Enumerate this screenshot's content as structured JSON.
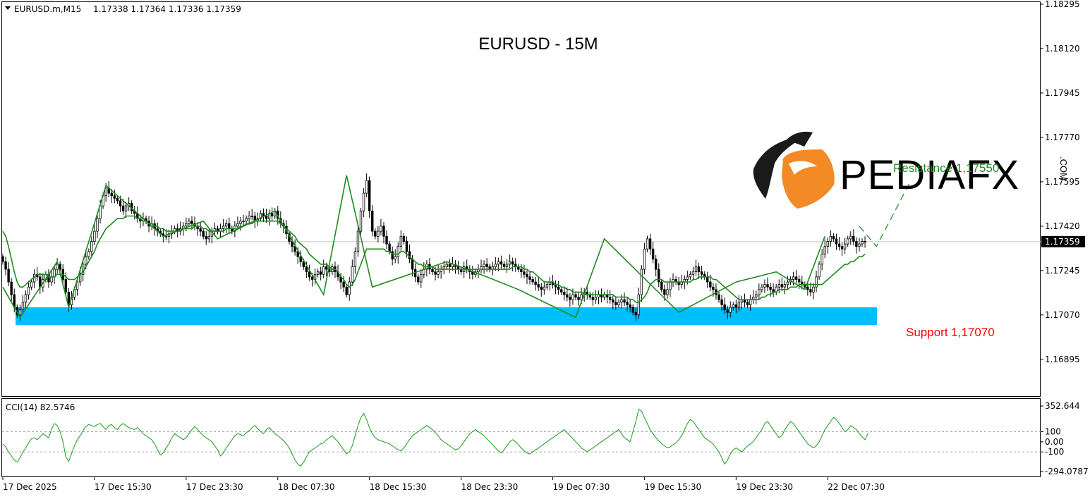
{
  "header": {
    "symbol_info": "EURUSD.m,M15",
    "ohlc": "1.17338 1.17364 1.17336 1.17359",
    "title": "EURUSD - 15M"
  },
  "annotations": {
    "resistance_label": "Resistance 1,17550",
    "support_label": "Support 1,17070"
  },
  "watermark": {
    "brand": "PEDIAFX",
    "suffix": ".COM"
  },
  "indicator": {
    "label": "CCI(14) 82.5746"
  },
  "colors": {
    "candle": "#000000",
    "zigzag": "#1e8a1e",
    "ma": "#1e8a1e",
    "cci_line": "#1a9a1a",
    "support_zone": "#00bfff",
    "support_text": "#ff0000",
    "resistance_text": "#1e8a1e",
    "price_tag_bg": "#000000",
    "logo_orange": "#f28a26"
  },
  "chart_data": [
    {
      "type": "candlestick",
      "title": "EURUSD - 15M",
      "ylim": [
        1.168,
        1.18295
      ],
      "y_ticks": [
        "1.18295",
        "1.18120",
        "1.17945",
        "1.17770",
        "1.17595",
        "1.17420",
        "1.17245",
        "1.17070",
        "1.16895"
      ],
      "last_price": "1.17359",
      "x_tick_labels": [
        "17 Dec 2025",
        "17 Dec 15:30",
        "17 Dec 23:30",
        "18 Dec 07:30",
        "18 Dec 15:30",
        "18 Dec 23:30",
        "19 Dec 07:30",
        "19 Dec 15:30",
        "19 Dec 23:30",
        "22 Dec 07:30"
      ],
      "x_tick_bars": [
        0,
        32,
        64,
        96,
        128,
        160,
        192,
        224,
        256,
        288
      ],
      "closes": [
        1.1728,
        1.1725,
        1.172,
        1.1715,
        1.171,
        1.1707,
        1.1709,
        1.1712,
        1.1715,
        1.1718,
        1.172,
        1.1723,
        1.1722,
        1.1718,
        1.1721,
        1.1723,
        1.172,
        1.1722,
        1.1725,
        1.1727,
        1.1725,
        1.1721,
        1.1716,
        1.1711,
        1.1714,
        1.1717,
        1.172,
        1.1723,
        1.1727,
        1.173,
        1.1732,
        1.1736,
        1.174,
        1.1745,
        1.175,
        1.1754,
        1.1757,
        1.1755,
        1.1754,
        1.1753,
        1.1752,
        1.175,
        1.1748,
        1.175,
        1.1751,
        1.1748,
        1.1747,
        1.1745,
        1.1744,
        1.1745,
        1.1744,
        1.1742,
        1.1743,
        1.1741,
        1.174,
        1.1739,
        1.1738,
        1.1738,
        1.1739,
        1.174,
        1.1741,
        1.174,
        1.1741,
        1.1742,
        1.1743,
        1.1744,
        1.1743,
        1.1742,
        1.1741,
        1.174,
        1.1738,
        1.1737,
        1.1738,
        1.174,
        1.1741,
        1.174,
        1.1741,
        1.1742,
        1.1743,
        1.1741,
        1.174,
        1.1742,
        1.1743,
        1.1744,
        1.1744,
        1.1745,
        1.1746,
        1.1746,
        1.1744,
        1.1745,
        1.1747,
        1.1746,
        1.1745,
        1.1747,
        1.1746,
        1.1748,
        1.1745,
        1.1743,
        1.1742,
        1.1739,
        1.1736,
        1.1734,
        1.1732,
        1.173,
        1.1728,
        1.1726,
        1.1724,
        1.1722,
        1.1721,
        1.1723,
        1.1724,
        1.1723,
        1.1726,
        1.1725,
        1.1724,
        1.1726,
        1.1724,
        1.1722,
        1.172,
        1.1718,
        1.1715,
        1.172,
        1.1726,
        1.1732,
        1.174,
        1.1748,
        1.1755,
        1.176,
        1.1748,
        1.174,
        1.1738,
        1.174,
        1.1742,
        1.1738,
        1.1735,
        1.1732,
        1.1729,
        1.173,
        1.1734,
        1.1738,
        1.1736,
        1.1732,
        1.1729,
        1.1725,
        1.1722,
        1.172,
        1.1723,
        1.1725,
        1.1727,
        1.1725,
        1.1724,
        1.1723,
        1.1724,
        1.1725,
        1.1726,
        1.1727,
        1.1726,
        1.1727,
        1.1726,
        1.1725,
        1.1724,
        1.1726,
        1.1725,
        1.1724,
        1.1723,
        1.1724,
        1.1725,
        1.1726,
        1.1727,
        1.1726,
        1.1725,
        1.1726,
        1.1727,
        1.1728,
        1.1727,
        1.1726,
        1.1727,
        1.1728,
        1.1727,
        1.1726,
        1.1725,
        1.1724,
        1.1723,
        1.1722,
        1.1721,
        1.172,
        1.1719,
        1.1718,
        1.1717,
        1.1718,
        1.1719,
        1.172,
        1.1719,
        1.1718,
        1.1717,
        1.1716,
        1.1715,
        1.1714,
        1.1713,
        1.1715,
        1.1714,
        1.1713,
        1.1715,
        1.1716,
        1.1715,
        1.1714,
        1.1713,
        1.1714,
        1.1715,
        1.1714,
        1.1715,
        1.1714,
        1.1713,
        1.1712,
        1.1711,
        1.1712,
        1.1713,
        1.1712,
        1.1711,
        1.171,
        1.1708,
        1.1707,
        1.1715,
        1.1725,
        1.1733,
        1.1737,
        1.1733,
        1.1729,
        1.1725,
        1.172,
        1.1717,
        1.1715,
        1.1717,
        1.172,
        1.1721,
        1.172,
        1.1719,
        1.172,
        1.1721,
        1.1722,
        1.1723,
        1.1724,
        1.1726,
        1.1724,
        1.1723,
        1.1722,
        1.172,
        1.1718,
        1.1717,
        1.1715,
        1.1713,
        1.1711,
        1.1709,
        1.1708,
        1.171,
        1.1711,
        1.171,
        1.1712,
        1.1713,
        1.1712,
        1.1711,
        1.1713,
        1.1714,
        1.1715,
        1.1717,
        1.1718,
        1.1719,
        1.1718,
        1.1717,
        1.1716,
        1.1718,
        1.1719,
        1.1718,
        1.1719,
        1.172,
        1.1721,
        1.1722,
        1.1721,
        1.172,
        1.1719,
        1.1718,
        1.1717,
        1.1716,
        1.1718,
        1.1722,
        1.1727,
        1.1731,
        1.1734,
        1.1736,
        1.1738,
        1.1737,
        1.1735,
        1.1734,
        1.1733,
        1.1735,
        1.1737,
        1.1738,
        1.1736,
        1.1734,
        1.1735,
        1.1736,
        1.17359
      ],
      "moving_average": [
        1.174,
        1.1738,
        1.1734,
        1.1729,
        1.1724,
        1.172,
        1.1718,
        1.1718,
        1.1719,
        1.172,
        1.1721,
        1.1722,
        1.1723,
        1.1723,
        1.1723,
        1.1723,
        1.1722,
        1.1722,
        1.1722,
        1.1723,
        1.1723,
        1.1723,
        1.1722,
        1.1721,
        1.1721,
        1.1721,
        1.1722,
        1.1723,
        1.1724,
        1.1726,
        1.1728,
        1.173,
        1.1732,
        1.1735,
        1.1737,
        1.1739,
        1.1741,
        1.1742,
        1.1743,
        1.1744,
        1.1745,
        1.1745,
        1.1745,
        1.1746,
        1.1746,
        1.1746,
        1.1746,
        1.1745,
        1.1745,
        1.1744,
        1.1744,
        1.1743,
        1.1743,
        1.1742,
        1.1742,
        1.1741,
        1.1741,
        1.174,
        1.174,
        1.174,
        1.174,
        1.174,
        1.174,
        1.1741,
        1.1741,
        1.1741,
        1.1741,
        1.1742,
        1.1742,
        1.1742,
        1.1741,
        1.1741,
        1.174,
        1.174,
        1.174,
        1.174,
        1.174,
        1.174,
        1.1741,
        1.1741,
        1.1741,
        1.1741,
        1.1741,
        1.1742,
        1.1742,
        1.1743,
        1.1743,
        1.1743,
        1.1744,
        1.1744,
        1.1744,
        1.1744,
        1.1744,
        1.1744,
        1.1744,
        1.1744,
        1.1744,
        1.1743,
        1.1742,
        1.1741,
        1.174,
        1.1739,
        1.1738,
        1.1736,
        1.1735,
        1.1734,
        1.1733,
        1.1731,
        1.173,
        1.1729,
        1.1728,
        1.1727,
        1.1727,
        1.1727,
        1.1726,
        1.1725,
        1.1725,
        1.1724,
        1.1722,
        1.1721,
        1.1719,
        1.1718,
        1.1719,
        1.1721,
        1.1724,
        1.1727,
        1.173,
        1.1733,
        1.1733,
        1.1733,
        1.1733,
        1.1733,
        1.1733,
        1.1733,
        1.1732,
        1.1732,
        1.1731,
        1.1731,
        1.1731,
        1.1732,
        1.1732,
        1.1731,
        1.173,
        1.1729,
        1.1728,
        1.1727,
        1.1727,
        1.1726,
        1.1726,
        1.1726,
        1.1726,
        1.1725,
        1.1725,
        1.1725,
        1.1725,
        1.1725,
        1.1725,
        1.1725,
        1.1725,
        1.1725,
        1.1725,
        1.1725,
        1.1725,
        1.1725,
        1.1725,
        1.1725,
        1.1725,
        1.1725,
        1.1725,
        1.1725,
        1.1725,
        1.1725,
        1.1725,
        1.1725,
        1.1725,
        1.1725,
        1.1725,
        1.1725,
        1.1726,
        1.1726,
        1.1726,
        1.1726,
        1.1725,
        1.1725,
        1.1724,
        1.1724,
        1.1723,
        1.1722,
        1.1721,
        1.172,
        1.172,
        1.172,
        1.172,
        1.1719,
        1.1719,
        1.1718,
        1.1718,
        1.1717,
        1.1717,
        1.1716,
        1.1716,
        1.1716,
        1.1716,
        1.1715,
        1.1715,
        1.1715,
        1.1715,
        1.1715,
        1.1715,
        1.1715,
        1.1715,
        1.1715,
        1.1715,
        1.1715,
        1.1714,
        1.1714,
        1.1714,
        1.1714,
        1.1714,
        1.1713,
        1.1713,
        1.1712,
        1.1712,
        1.1713,
        1.1714,
        1.1716,
        1.1719,
        1.172,
        1.1721,
        1.1721,
        1.1721,
        1.172,
        1.172,
        1.172,
        1.172,
        1.172,
        1.172,
        1.172,
        1.172,
        1.172,
        1.172,
        1.1721,
        1.1721,
        1.1722,
        1.1722,
        1.1722,
        1.1722,
        1.1722,
        1.1721,
        1.1721,
        1.172,
        1.1719,
        1.1718,
        1.1717,
        1.1716,
        1.1715,
        1.1714,
        1.1713,
        1.1713,
        1.1713,
        1.1713,
        1.1713,
        1.1713,
        1.1713,
        1.1713,
        1.1714,
        1.1714,
        1.1715,
        1.1715,
        1.1716,
        1.1716,
        1.1717,
        1.1717,
        1.1717,
        1.1717,
        1.1718,
        1.1718,
        1.1718,
        1.1719,
        1.1719,
        1.1719,
        1.1719,
        1.1719,
        1.1719,
        1.1719,
        1.1719,
        1.1719,
        1.172,
        1.1721,
        1.1722,
        1.1723,
        1.1724,
        1.1725,
        1.1726,
        1.1727,
        1.1727,
        1.1728,
        1.1728,
        1.1729,
        1.173,
        1.173,
        1.1731
      ],
      "zigzag": [
        {
          "bar": 0,
          "price": 1.1718
        },
        {
          "bar": 6,
          "price": 1.1706
        },
        {
          "bar": 19,
          "price": 1.1728
        },
        {
          "bar": 23,
          "price": 1.171
        },
        {
          "bar": 36,
          "price": 1.1758
        },
        {
          "bar": 56,
          "price": 1.1738
        },
        {
          "bar": 70,
          "price": 1.1744
        },
        {
          "bar": 75,
          "price": 1.1737
        },
        {
          "bar": 95,
          "price": 1.1748
        },
        {
          "bar": 112,
          "price": 1.1715
        },
        {
          "bar": 120,
          "price": 1.1762
        },
        {
          "bar": 129,
          "price": 1.1718
        },
        {
          "bar": 155,
          "price": 1.1728
        },
        {
          "bar": 169,
          "price": 1.1722
        },
        {
          "bar": 180,
          "price": 1.1717
        },
        {
          "bar": 200,
          "price": 1.1706
        },
        {
          "bar": 210,
          "price": 1.1737
        },
        {
          "bar": 236,
          "price": 1.1708
        },
        {
          "bar": 256,
          "price": 1.172
        },
        {
          "bar": 270,
          "price": 1.1724
        },
        {
          "bar": 280,
          "price": 1.1717
        },
        {
          "bar": 287,
          "price": 1.1738
        }
      ],
      "projection": [
        {
          "bar": 299,
          "price": 1.1742
        },
        {
          "bar": 305,
          "price": 1.1734
        },
        {
          "bar": 317,
          "price": 1.176
        }
      ],
      "support_zone": {
        "from": 1.1703,
        "to": 1.171
      },
      "resistance": 1.1755,
      "support": 1.1707
    },
    {
      "type": "line",
      "title": "CCI(14) 82.5746",
      "ylim": [
        -300,
        360
      ],
      "y_ticks": [
        "352.644",
        "100",
        "0.00",
        "-100",
        "-294.0787"
      ],
      "levels": [
        100,
        -100
      ],
      "series": [
        {
          "name": "CCI(14)",
          "values": [
            -20,
            -50,
            -100,
            -140,
            -180,
            -200,
            -160,
            -100,
            -60,
            -10,
            30,
            40,
            20,
            50,
            80,
            60,
            40,
            120,
            180,
            160,
            100,
            0,
            -150,
            -190,
            -120,
            -40,
            20,
            60,
            110,
            150,
            170,
            160,
            150,
            170,
            180,
            150,
            120,
            160,
            170,
            140,
            120,
            160,
            180,
            160,
            140,
            130,
            120,
            140,
            110,
            80,
            60,
            40,
            20,
            -20,
            -80,
            -130,
            -110,
            -60,
            -20,
            40,
            80,
            60,
            40,
            20,
            40,
            80,
            120,
            150,
            120,
            90,
            60,
            40,
            20,
            0,
            -40,
            -80,
            -140,
            -110,
            -60,
            -20,
            20,
            60,
            80,
            70,
            60,
            90,
            110,
            140,
            160,
            130,
            100,
            80,
            120,
            140,
            110,
            80,
            60,
            40,
            10,
            -20,
            -60,
            -120,
            -180,
            -220,
            -240,
            -200,
            -150,
            -100,
            -80,
            -60,
            -40,
            -20,
            -10,
            20,
            40,
            60,
            30,
            0,
            -40,
            -80,
            -120,
            -100,
            -40,
            60,
            160,
            240,
            280,
            220,
            140,
            80,
            40,
            20,
            10,
            0,
            -10,
            -20,
            -40,
            -60,
            -80,
            -90,
            -60,
            -20,
            20,
            60,
            80,
            100,
            120,
            140,
            160,
            140,
            120,
            90,
            60,
            20,
            0,
            -20,
            -40,
            -60,
            -80,
            -70,
            -40,
            0,
            40,
            80,
            100,
            120,
            100,
            80,
            60,
            30,
            0,
            -30,
            -60,
            -90,
            -110,
            -80,
            -40,
            0,
            20,
            0,
            -30,
            -60,
            -90,
            -110,
            -120,
            -100,
            -80,
            -60,
            -40,
            -20,
            0,
            20,
            40,
            60,
            80,
            100,
            120,
            90,
            60,
            30,
            0,
            -30,
            -60,
            -80,
            -100,
            -80,
            -60,
            -40,
            -20,
            0,
            20,
            40,
            60,
            80,
            100,
            120,
            80,
            40,
            20,
            0,
            100,
            200,
            320,
            300,
            240,
            180,
            120,
            80,
            40,
            10,
            -20,
            -40,
            -60,
            -50,
            -30,
            -10,
            20,
            60,
            120,
            180,
            220,
            200,
            160,
            120,
            80,
            40,
            20,
            0,
            -20,
            -60,
            -100,
            -160,
            -220,
            -180,
            -120,
            -80,
            -60,
            -80,
            -100,
            -70,
            -40,
            -20,
            0,
            40,
            80,
            120,
            180,
            200,
            160,
            120,
            80,
            40,
            60,
            120,
            160,
            200,
            180,
            140,
            100,
            60,
            20,
            -20,
            -40,
            -60,
            -40,
            0,
            60,
            120,
            160,
            200,
            240,
            220,
            180,
            140,
            100,
            120,
            160,
            140,
            120,
            80,
            50,
            20,
            80
          ]
        }
      ]
    }
  ]
}
